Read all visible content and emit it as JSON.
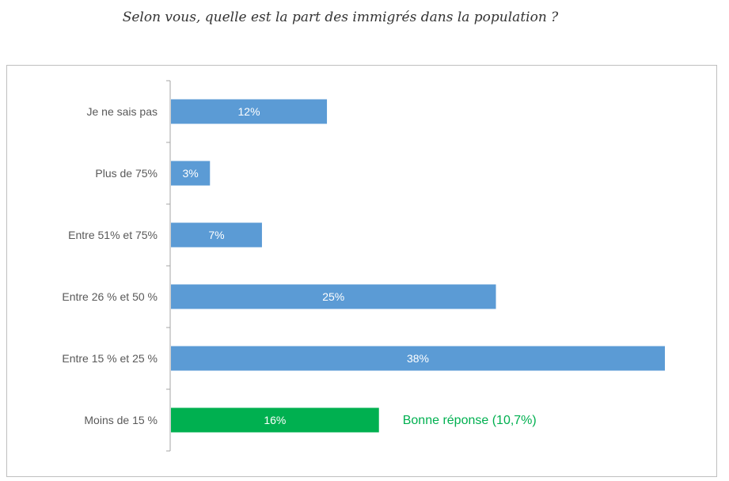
{
  "chart_data": {
    "type": "bar",
    "orientation": "horizontal",
    "title": "Selon vous, quelle est la part des immigrés dans la population ?",
    "categories": [
      "Je ne sais pas",
      "Plus de 75%",
      "Entre 51% et 75%",
      "Entre 26 % et 50 %",
      "Entre 15 % et 25 %",
      "Moins de 15 %"
    ],
    "values": [
      12,
      3,
      7,
      25,
      38,
      16
    ],
    "data_labels": [
      "12%",
      "3%",
      "7%",
      "25%",
      "38%",
      "16%"
    ],
    "colors": [
      "#5b9bd5",
      "#5b9bd5",
      "#5b9bd5",
      "#5b9bd5",
      "#5b9bd5",
      "#00b050"
    ],
    "annotation": {
      "text": "Bonne réponse (10,7%)",
      "category": "Moins de 15 %",
      "color": "#00b050"
    },
    "xlim": [
      0,
      38
    ],
    "grid": false,
    "legend": "none"
  }
}
